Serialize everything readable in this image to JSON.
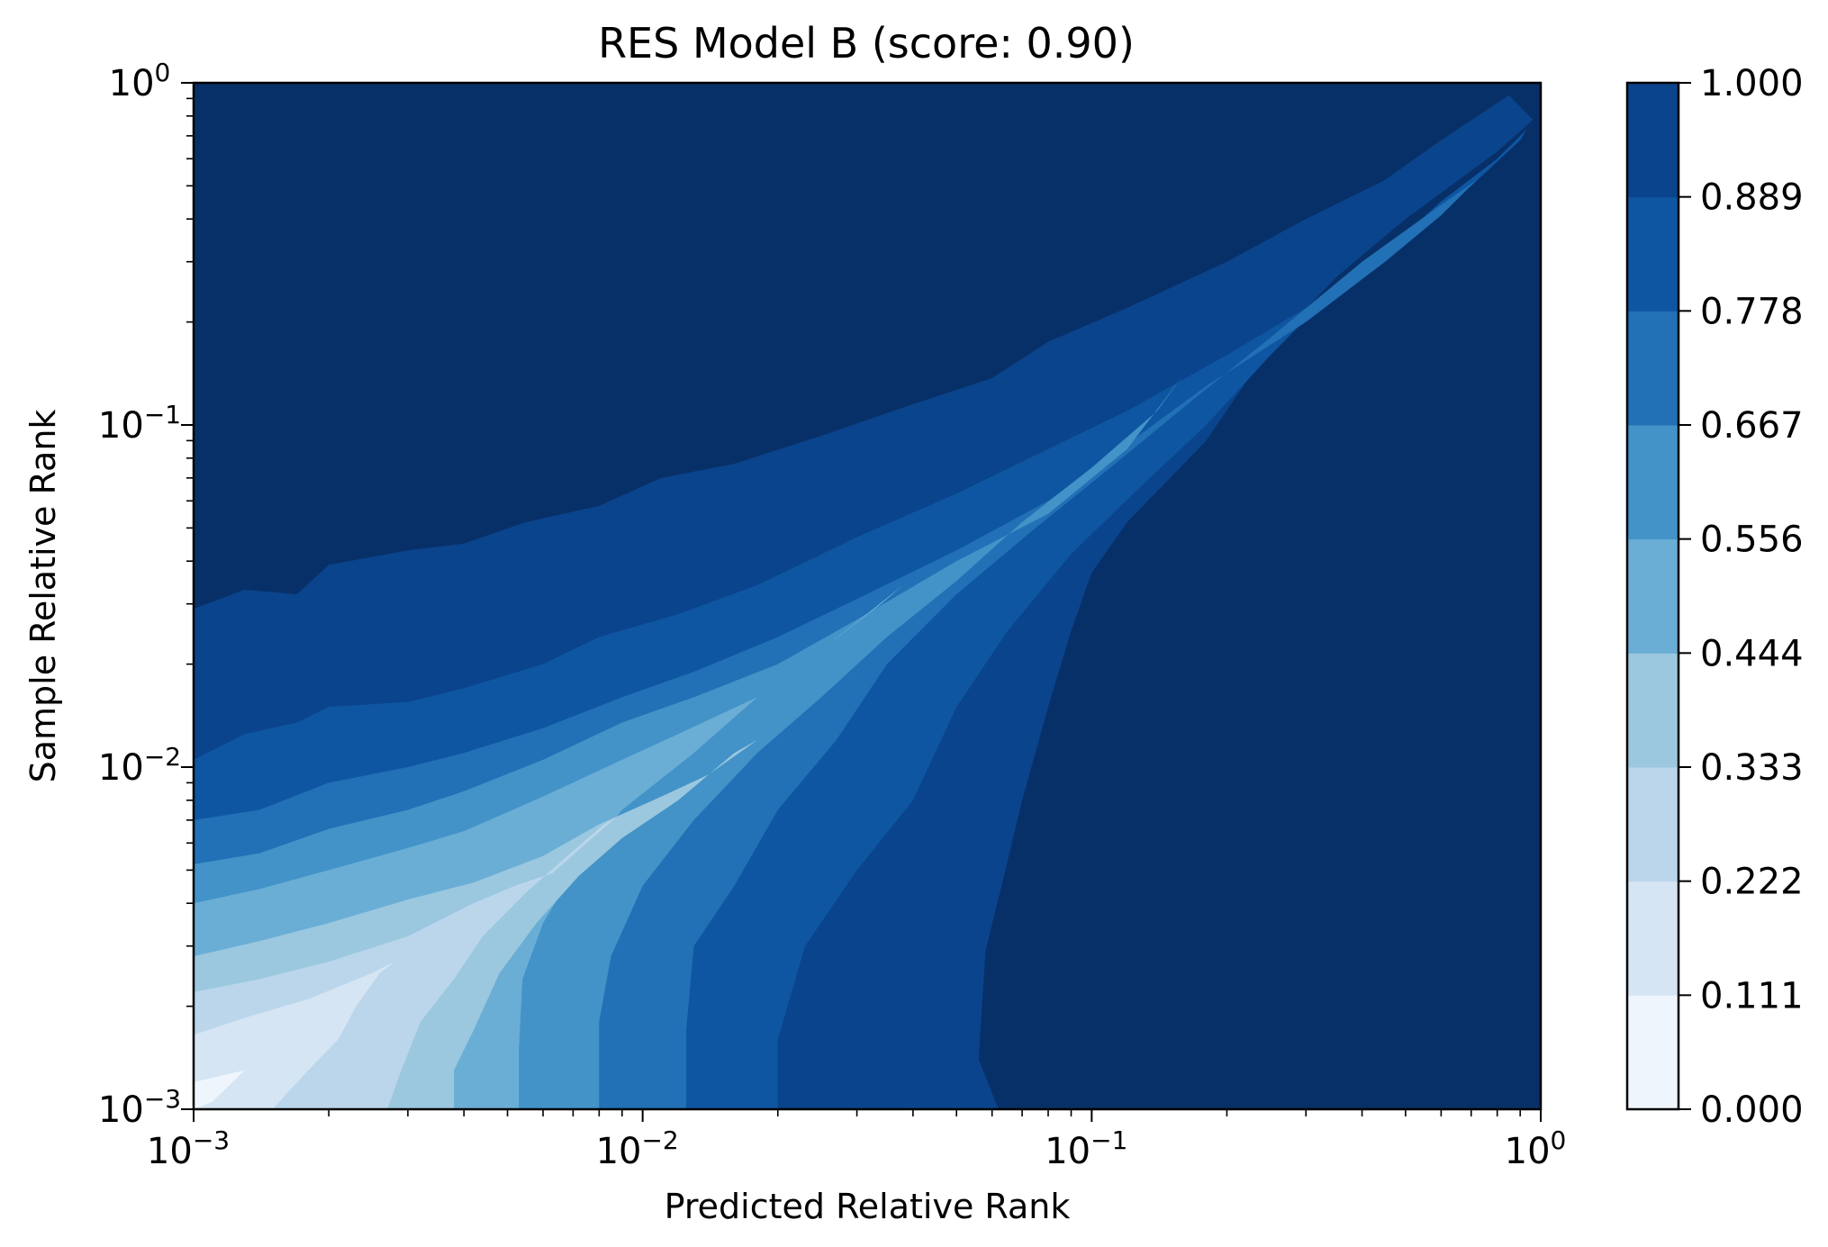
{
  "chart_data": {
    "type": "heatmap",
    "title": "RES Model B (score: 0.90)",
    "xlabel": "Predicted Relative Rank",
    "ylabel": "Sample Relative Rank",
    "xscale": "log",
    "yscale": "log",
    "xlim": [
      0.001,
      1
    ],
    "ylim": [
      0.001,
      1
    ],
    "x_ticks": [
      {
        "base": "10",
        "exp": "−3",
        "value": 0.001
      },
      {
        "base": "10",
        "exp": "−2",
        "value": 0.01
      },
      {
        "base": "10",
        "exp": "−1",
        "value": 0.1
      },
      {
        "base": "10",
        "exp": "0",
        "value": 1
      }
    ],
    "y_ticks": [
      {
        "base": "10",
        "exp": "−3",
        "value": 0.001
      },
      {
        "base": "10",
        "exp": "−2",
        "value": 0.01
      },
      {
        "base": "10",
        "exp": "−1",
        "value": 0.1
      },
      {
        "base": "10",
        "exp": "0",
        "value": 1
      }
    ],
    "colorbar": {
      "levels": [
        "0.000",
        "0.111",
        "0.222",
        "0.333",
        "0.444",
        "0.556",
        "0.667",
        "0.778",
        "0.889",
        "1.000"
      ],
      "colors": [
        "#eef5fc",
        "#d5e5f4",
        "#bbd6eb",
        "#9bc8df",
        "#6aaed6",
        "#4393c8",
        "#2270b5",
        "#0f56a2",
        "#0a448c",
        "#083068"
      ]
    },
    "contours": [
      {
        "level": 1,
        "below": [
          [
            0.001,
            0.029
          ],
          [
            0.0013,
            0.033
          ],
          [
            0.0017,
            0.032
          ],
          [
            0.002,
            0.039
          ],
          [
            0.003,
            0.043
          ],
          [
            0.004,
            0.045
          ],
          [
            0.0055,
            0.052
          ],
          [
            0.008,
            0.058
          ],
          [
            0.011,
            0.07
          ],
          [
            0.016,
            0.077
          ],
          [
            0.025,
            0.093
          ],
          [
            0.04,
            0.115
          ],
          [
            0.06,
            0.137
          ],
          [
            0.08,
            0.175
          ],
          [
            0.12,
            0.22
          ],
          [
            0.2,
            0.3
          ],
          [
            0.3,
            0.4
          ],
          [
            0.45,
            0.52
          ],
          [
            0.6,
            0.68
          ],
          [
            0.85,
            0.92
          ],
          [
            0.96,
            0.78
          ]
        ],
        "right": [
          [
            0.93,
            0.75
          ],
          [
            0.8,
            0.63
          ],
          [
            0.5,
            0.4
          ],
          [
            0.35,
            0.27
          ],
          [
            0.25,
            0.17
          ],
          [
            0.18,
            0.09
          ],
          [
            0.12,
            0.052
          ],
          [
            0.1,
            0.037
          ],
          [
            0.09,
            0.025
          ],
          [
            0.08,
            0.015
          ],
          [
            0.07,
            0.008
          ],
          [
            0.063,
            0.0045
          ],
          [
            0.058,
            0.0029
          ],
          [
            0.056,
            0.0014
          ],
          [
            0.062,
            0.001
          ]
        ]
      },
      {
        "level": 2,
        "below": [
          [
            0.001,
            0.0105
          ],
          [
            0.0013,
            0.0125
          ],
          [
            0.0017,
            0.0135
          ],
          [
            0.002,
            0.015
          ],
          [
            0.003,
            0.0155
          ],
          [
            0.004,
            0.017
          ],
          [
            0.006,
            0.02
          ],
          [
            0.008,
            0.024
          ],
          [
            0.012,
            0.028
          ],
          [
            0.018,
            0.034
          ],
          [
            0.03,
            0.047
          ],
          [
            0.05,
            0.063
          ],
          [
            0.08,
            0.085
          ],
          [
            0.12,
            0.11
          ],
          [
            0.2,
            0.16
          ],
          [
            0.3,
            0.22
          ],
          [
            0.45,
            0.32
          ],
          [
            0.6,
            0.45
          ],
          [
            0.8,
            0.6
          ],
          [
            0.93,
            0.73
          ]
        ],
        "right": [
          [
            0.9,
            0.68
          ],
          [
            0.7,
            0.5
          ],
          [
            0.5,
            0.37
          ],
          [
            0.35,
            0.25
          ],
          [
            0.25,
            0.16
          ],
          [
            0.18,
            0.1
          ],
          [
            0.13,
            0.067
          ],
          [
            0.09,
            0.042
          ],
          [
            0.065,
            0.025
          ],
          [
            0.05,
            0.015
          ],
          [
            0.04,
            0.008
          ],
          [
            0.03,
            0.005
          ],
          [
            0.023,
            0.003
          ],
          [
            0.02,
            0.0016
          ],
          [
            0.02,
            0.001
          ]
        ]
      },
      {
        "level": 3,
        "below": [
          [
            0.001,
            0.007
          ],
          [
            0.0014,
            0.0075
          ],
          [
            0.002,
            0.009
          ],
          [
            0.003,
            0.01
          ],
          [
            0.004,
            0.011
          ],
          [
            0.006,
            0.013
          ],
          [
            0.009,
            0.016
          ],
          [
            0.013,
            0.019
          ],
          [
            0.02,
            0.024
          ],
          [
            0.03,
            0.031
          ],
          [
            0.05,
            0.043
          ],
          [
            0.08,
            0.06
          ],
          [
            0.12,
            0.088
          ],
          [
            0.18,
            0.13
          ],
          [
            0.3,
            0.2
          ],
          [
            0.45,
            0.3
          ],
          [
            0.6,
            0.41
          ],
          [
            0.72,
            0.52
          ]
        ],
        "right": [
          [
            0.6,
            0.44
          ],
          [
            0.4,
            0.3
          ],
          [
            0.25,
            0.18
          ],
          [
            0.17,
            0.12
          ],
          [
            0.11,
            0.075
          ],
          [
            0.075,
            0.05
          ],
          [
            0.05,
            0.032
          ],
          [
            0.035,
            0.02
          ],
          [
            0.027,
            0.012
          ],
          [
            0.02,
            0.0075
          ],
          [
            0.016,
            0.0045
          ],
          [
            0.013,
            0.003
          ],
          [
            0.0125,
            0.0017
          ],
          [
            0.0125,
            0.001
          ]
        ]
      },
      {
        "level": 4,
        "below": [
          [
            0.001,
            0.0052
          ],
          [
            0.0014,
            0.0056
          ],
          [
            0.002,
            0.0066
          ],
          [
            0.003,
            0.0075
          ],
          [
            0.004,
            0.0085
          ],
          [
            0.006,
            0.0105
          ],
          [
            0.009,
            0.0135
          ],
          [
            0.013,
            0.016
          ],
          [
            0.02,
            0.02
          ],
          [
            0.03,
            0.027
          ],
          [
            0.05,
            0.04
          ],
          [
            0.08,
            0.055
          ],
          [
            0.12,
            0.085
          ],
          [
            0.16,
            0.14
          ]
        ],
        "right": [
          [
            0.14,
            0.11
          ],
          [
            0.1,
            0.075
          ],
          [
            0.07,
            0.052
          ],
          [
            0.05,
            0.035
          ],
          [
            0.035,
            0.024
          ],
          [
            0.025,
            0.016
          ],
          [
            0.018,
            0.011
          ],
          [
            0.013,
            0.007
          ],
          [
            0.01,
            0.0045
          ],
          [
            0.0085,
            0.0028
          ],
          [
            0.008,
            0.0018
          ],
          [
            0.008,
            0.001
          ]
        ]
      },
      {
        "level": 5,
        "below": [
          [
            0.001,
            0.004
          ],
          [
            0.0014,
            0.0044
          ],
          [
            0.002,
            0.005
          ],
          [
            0.003,
            0.0058
          ],
          [
            0.004,
            0.0065
          ],
          [
            0.006,
            0.0082
          ],
          [
            0.009,
            0.0105
          ],
          [
            0.012,
            0.0125
          ],
          [
            0.018,
            0.016
          ],
          [
            0.025,
            0.022
          ],
          [
            0.038,
            0.034
          ]
        ],
        "right": [
          [
            0.034,
            0.03
          ],
          [
            0.025,
            0.022
          ],
          [
            0.018,
            0.016
          ],
          [
            0.013,
            0.011
          ],
          [
            0.009,
            0.0075
          ],
          [
            0.0072,
            0.0052
          ],
          [
            0.006,
            0.0035
          ],
          [
            0.0054,
            0.0024
          ],
          [
            0.0053,
            0.0015
          ],
          [
            0.0053,
            0.001
          ]
        ]
      },
      {
        "level": 6,
        "below": [
          [
            0.001,
            0.0028
          ],
          [
            0.0014,
            0.0031
          ],
          [
            0.002,
            0.0035
          ],
          [
            0.003,
            0.0041
          ],
          [
            0.0042,
            0.0046
          ],
          [
            0.006,
            0.0055
          ],
          [
            0.008,
            0.0068
          ],
          [
            0.011,
            0.0082
          ],
          [
            0.014,
            0.0095
          ],
          [
            0.018,
            0.012
          ]
        ],
        "right": [
          [
            0.016,
            0.011
          ],
          [
            0.012,
            0.008
          ],
          [
            0.009,
            0.0062
          ],
          [
            0.0072,
            0.0048
          ],
          [
            0.0058,
            0.0035
          ],
          [
            0.0048,
            0.0025
          ],
          [
            0.0042,
            0.0017
          ],
          [
            0.0038,
            0.0013
          ],
          [
            0.0038,
            0.001
          ]
        ]
      },
      {
        "level": 7,
        "below": [
          [
            0.001,
            0.0022
          ],
          [
            0.0014,
            0.0024
          ],
          [
            0.002,
            0.0027
          ],
          [
            0.003,
            0.0032
          ],
          [
            0.0042,
            0.004
          ],
          [
            0.0052,
            0.0045
          ],
          [
            0.0063,
            0.0049
          ],
          [
            0.0075,
            0.006
          ],
          [
            0.0088,
            0.0072
          ]
        ],
        "right": [
          [
            0.0082,
            0.0068
          ],
          [
            0.0068,
            0.0055
          ],
          [
            0.0055,
            0.0043
          ],
          [
            0.0044,
            0.0032
          ],
          [
            0.0038,
            0.0024
          ],
          [
            0.0032,
            0.0018
          ],
          [
            0.0029,
            0.0013
          ],
          [
            0.0027,
            0.001
          ]
        ]
      },
      {
        "level": 8,
        "below": [
          [
            0.001,
            0.00165
          ],
          [
            0.0013,
            0.00185
          ],
          [
            0.0018,
            0.0021
          ],
          [
            0.0025,
            0.0025
          ],
          [
            0.0028,
            0.0027
          ]
        ],
        "right": [
          [
            0.0026,
            0.0025
          ],
          [
            0.0023,
            0.002
          ],
          [
            0.0021,
            0.0016
          ],
          [
            0.0018,
            0.0013
          ],
          [
            0.0016,
            0.0011
          ],
          [
            0.0015,
            0.001
          ]
        ]
      },
      {
        "level": 9,
        "below": [
          [
            0.001,
            0.0012
          ],
          [
            0.0013,
            0.0013
          ]
        ],
        "right": [
          [
            0.0011,
            0.00105
          ],
          [
            0.001,
            0.001
          ]
        ]
      }
    ]
  }
}
